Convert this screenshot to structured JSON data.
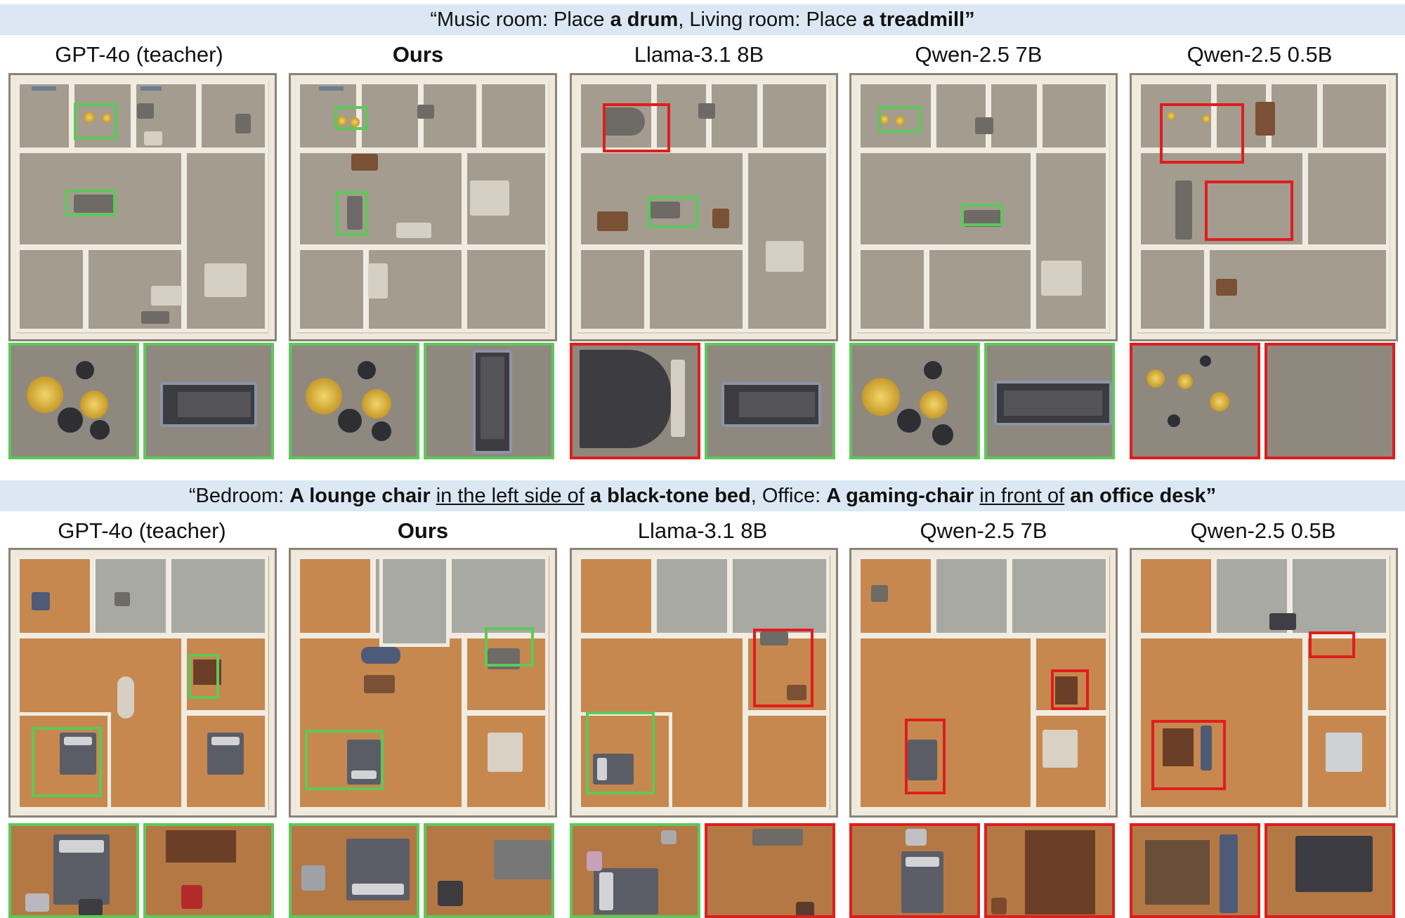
{
  "rows": [
    {
      "prompt": {
        "q_open": "“",
        "p1": "Music room: Place ",
        "b1": "a drum",
        "p2": ",  Living room: Place ",
        "b2": "a treadmill",
        "q_close": "”"
      },
      "columns": [
        {
          "label": "GPT-4o (teacher)",
          "bold": false,
          "results": [
            "correct",
            "correct"
          ]
        },
        {
          "label": "Ours",
          "bold": true,
          "results": [
            "correct",
            "correct"
          ]
        },
        {
          "label": "Llama-3.1 8B",
          "bold": false,
          "results": [
            "incorrect",
            "correct"
          ]
        },
        {
          "label": "Qwen-2.5 7B",
          "bold": false,
          "results": [
            "correct",
            "correct"
          ]
        },
        {
          "label": "Qwen-2.5 0.5B",
          "bold": false,
          "results": [
            "incorrect",
            "incorrect"
          ]
        }
      ]
    },
    {
      "prompt": {
        "q_open": "“",
        "p1": "Bedroom: ",
        "b1": "A lounge chair",
        "u1": "in the left side of",
        "b2": "a black-tone bed",
        "p2": ",  Office: ",
        "b3": "A gaming-chair",
        "u2": "in front of",
        "b4": "an office desk",
        "q_close": "”"
      },
      "columns": [
        {
          "label": "GPT-4o (teacher)",
          "bold": false,
          "results": [
            "correct",
            "correct"
          ]
        },
        {
          "label": "Ours",
          "bold": true,
          "results": [
            "correct",
            "correct"
          ]
        },
        {
          "label": "Llama-3.1 8B",
          "bold": false,
          "results": [
            "correct",
            "incorrect"
          ]
        },
        {
          "label": "Qwen-2.5 7B",
          "bold": false,
          "results": [
            "incorrect",
            "incorrect"
          ]
        },
        {
          "label": "Qwen-2.5 0.5B",
          "bold": false,
          "results": [
            "incorrect",
            "incorrect"
          ]
        }
      ]
    }
  ],
  "colors": {
    "correct": "#5dc85a",
    "incorrect": "#e01d1d",
    "banner": "#dbe8f3"
  }
}
